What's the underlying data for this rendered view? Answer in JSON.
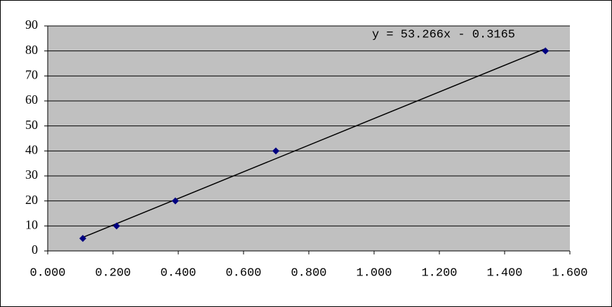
{
  "chart_data": {
    "type": "scatter",
    "series": [
      {
        "color": "#000080",
        "x": [
          0.1075,
          0.211,
          0.391,
          0.699,
          1.525
        ],
        "values": [
          5,
          10,
          20,
          40,
          80
        ]
      }
    ],
    "trendline": {
      "slope": 53.266,
      "intercept": -0.3165,
      "label": "y = 53.266x - 0.3165",
      "color": "#000000"
    },
    "xlim": [
      0,
      1.6
    ],
    "xticks": [
      {
        "value": 0,
        "label": "0.000"
      },
      {
        "value": 0.2,
        "label": "0.200"
      },
      {
        "value": 0.4,
        "label": "0.400"
      },
      {
        "value": 0.6,
        "label": "0.600"
      },
      {
        "value": 0.8,
        "label": "0.800"
      },
      {
        "value": 1.0,
        "label": "1.000"
      },
      {
        "value": 1.2,
        "label": "1.200"
      },
      {
        "value": 1.4,
        "label": "1.400"
      },
      {
        "value": 1.6,
        "label": "1.600"
      }
    ],
    "ylim": [
      0,
      90
    ],
    "yticks": [
      0,
      10,
      20,
      30,
      40,
      50,
      60,
      70,
      80,
      90
    ],
    "grid": true,
    "plot_background": "#c0c0c0"
  }
}
